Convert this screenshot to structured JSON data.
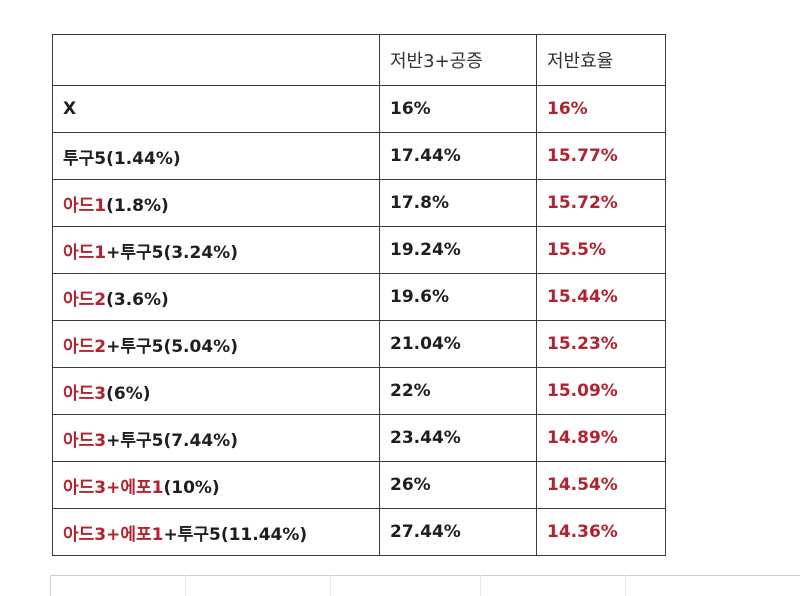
{
  "table": {
    "header": [
      "",
      "저반3+공증",
      "저반효율"
    ],
    "rows": [
      {
        "option": [
          {
            "text": "X",
            "color": "dark"
          }
        ],
        "stat": "16%",
        "efficiency": "16%"
      },
      {
        "option": [
          {
            "text": "투구5(1.44%)",
            "color": "dark"
          }
        ],
        "stat": "17.44%",
        "efficiency": "15.77%"
      },
      {
        "option": [
          {
            "text": "아드1",
            "color": "red"
          },
          {
            "text": "(1.8%)",
            "color": "dark"
          }
        ],
        "stat": "17.8%",
        "efficiency": "15.72%"
      },
      {
        "option": [
          {
            "text": "아드1",
            "color": "red"
          },
          {
            "text": "+투구5(3.24%)",
            "color": "dark"
          }
        ],
        "stat": "19.24%",
        "efficiency": "15.5%"
      },
      {
        "option": [
          {
            "text": "아드2",
            "color": "red"
          },
          {
            "text": "(3.6%)",
            "color": "dark"
          }
        ],
        "stat": "19.6%",
        "efficiency": "15.44%"
      },
      {
        "option": [
          {
            "text": "아드2",
            "color": "red"
          },
          {
            "text": "+투구5(5.04%)",
            "color": "dark"
          }
        ],
        "stat": "21.04%",
        "efficiency": "15.23%"
      },
      {
        "option": [
          {
            "text": "아드3",
            "color": "red"
          },
          {
            "text": "(6%)",
            "color": "dark"
          }
        ],
        "stat": "22%",
        "efficiency": "15.09%"
      },
      {
        "option": [
          {
            "text": "아드3",
            "color": "red"
          },
          {
            "text": "+투구5(7.44%)",
            "color": "dark"
          }
        ],
        "stat": "23.44%",
        "efficiency": "14.89%"
      },
      {
        "option": [
          {
            "text": "아드3+에포1",
            "color": "red"
          },
          {
            "text": "(10%)",
            "color": "dark"
          }
        ],
        "stat": "26%",
        "efficiency": "14.54%"
      },
      {
        "option": [
          {
            "text": "아드3+에포1",
            "color": "red"
          },
          {
            "text": "+투구5(11.44%)",
            "color": "dark"
          }
        ],
        "stat": "27.44%",
        "efficiency": "14.36%"
      }
    ]
  },
  "colors": {
    "red": "#b3232f",
    "dark": "#1e1e1e",
    "border": "#3a3a3a"
  }
}
